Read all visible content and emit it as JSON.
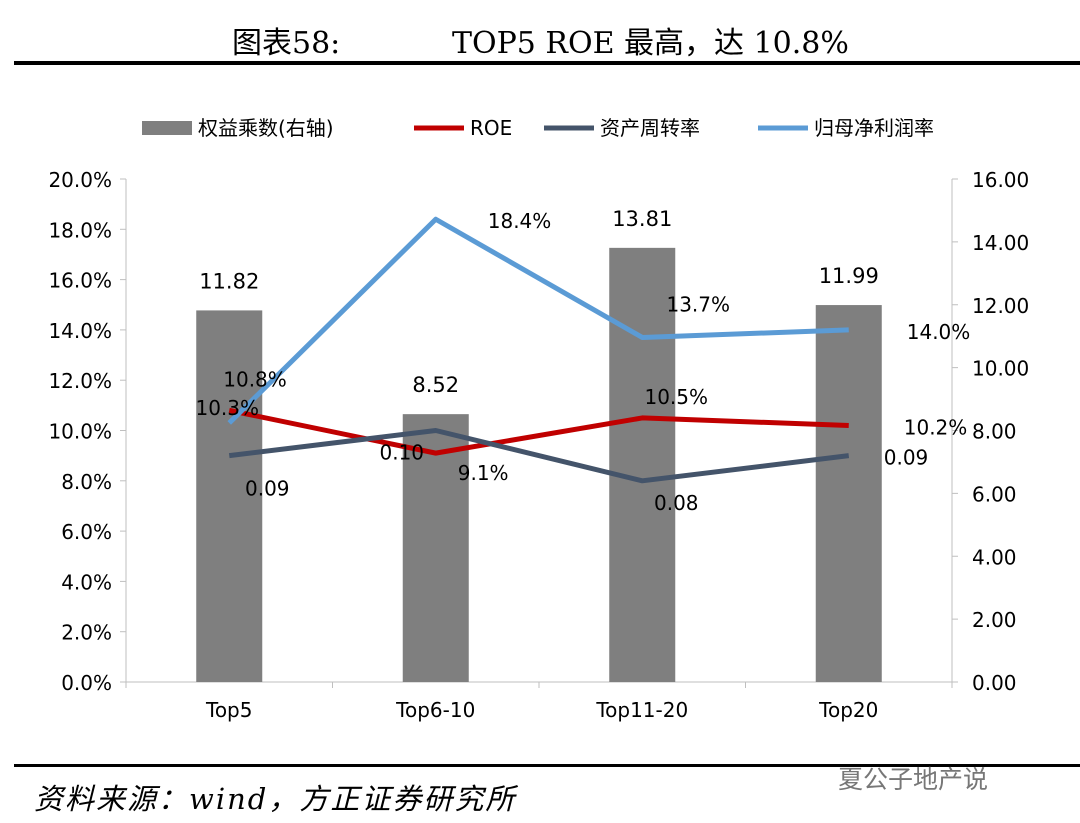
{
  "header": {
    "figure_label": "图表58:",
    "title": "TOP5 ROE 最高，达 10.8%"
  },
  "footer": {
    "source": "资料来源：wind，方正证券研究所",
    "watermark": "夏公子地产说"
  },
  "chart_data": {
    "type": "bar",
    "categories": [
      "Top5",
      "Top6-10",
      "Top11-20",
      "Top20"
    ],
    "legend_position": "top",
    "grid": false,
    "series": [
      {
        "name": "权益乘数(右轴)",
        "type": "bar",
        "axis": "right",
        "color": "#7f7f7f",
        "values": [
          11.82,
          8.52,
          13.81,
          11.99
        ],
        "labels": [
          "11.82",
          "8.52",
          "13.81",
          "11.99"
        ]
      },
      {
        "name": "ROE",
        "type": "line",
        "axis": "left",
        "color": "#c00000",
        "values": [
          10.8,
          9.1,
          10.5,
          10.2
        ],
        "labels": [
          "10.8%",
          "9.1%",
          "10.5%",
          "10.2%"
        ]
      },
      {
        "name": "资产周转率",
        "type": "line",
        "axis": "left-ratio",
        "color": "#44546a",
        "values": [
          0.09,
          0.1,
          0.08,
          0.09
        ],
        "labels": [
          "0.09",
          "0.10",
          "0.08",
          "0.09"
        ]
      },
      {
        "name": "归母净利润率",
        "type": "line",
        "axis": "left",
        "color": "#5b9bd5",
        "values": [
          10.3,
          18.4,
          13.7,
          14.0
        ],
        "labels": [
          "10.3%",
          "18.4%",
          "13.7%",
          "14.0%"
        ]
      }
    ],
    "left_axis": {
      "min": 0,
      "max": 20,
      "ticks": [
        "0.0%",
        "2.0%",
        "4.0%",
        "6.0%",
        "8.0%",
        "10.0%",
        "12.0%",
        "14.0%",
        "16.0%",
        "18.0%",
        "20.0%"
      ]
    },
    "right_axis": {
      "min": 0,
      "max": 16,
      "ticks": [
        "0.00",
        "2.00",
        "4.00",
        "6.00",
        "8.00",
        "10.00",
        "12.00",
        "14.00",
        "16.00"
      ]
    }
  }
}
